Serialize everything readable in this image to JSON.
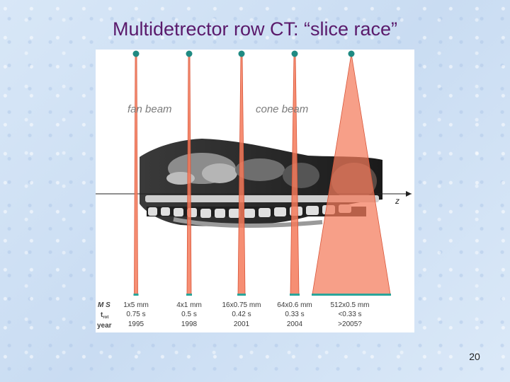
{
  "slide": {
    "title": "Multidetrector row CT: “slice race”",
    "page_number": "20"
  },
  "figure": {
    "beam_labels": {
      "fan": "fan beam",
      "cone": "cone beam"
    },
    "axis_label": "z",
    "row_labels": {
      "ms": "M S",
      "trot": "t",
      "trot_sub": "rot",
      "year": "year"
    },
    "scanners": [
      {
        "config": "1x5 mm",
        "rotation": "0.75 s",
        "year": "1995"
      },
      {
        "config": "4x1 mm",
        "rotation": "0.5 s",
        "year": "1998"
      },
      {
        "config": "16x0.75 mm",
        "rotation": "0.42 s",
        "year": "2001"
      },
      {
        "config": "64x0.6 mm",
        "rotation": "0.33 s",
        "year": "2004"
      },
      {
        "config": "512x0.5 mm",
        "rotation": "<0.33 s",
        "year": ">2005?"
      }
    ],
    "colors": {
      "beam_fill": "#f47a5a",
      "beam_stroke": "#d9563a",
      "source_dot": "#1f8a82",
      "detector_bar": "#2aa59a",
      "label_gray": "#7c7c7c"
    }
  }
}
